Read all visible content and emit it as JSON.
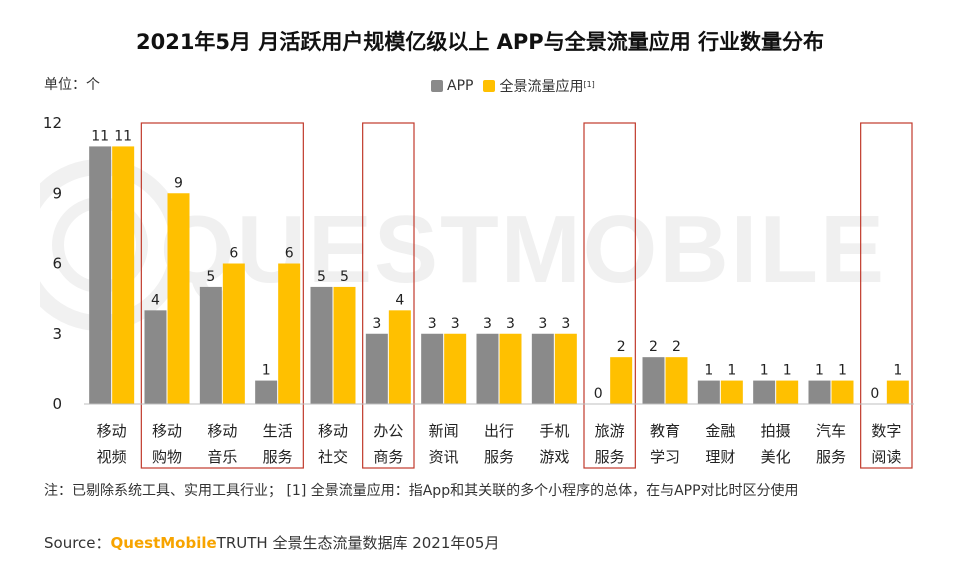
{
  "title": "2021年5月 月活跃用户规模亿级以上 APP与全景流量应用 行业数量分布",
  "unit_label": "单位：个",
  "legend": {
    "app": "APP",
    "panoramic": "全景流量应用",
    "panoramic_sup": "[1]"
  },
  "watermark_text": "QUESTMOBILE",
  "note": "注：已剔除系统工具、实用工具行业；  [1] 全景流量应用：指App和其关联的多个小程序的总体，在与APP对比时区分使用",
  "source": {
    "prefix": "Source：",
    "brand": "QuestMobile",
    "rest": "TRUTH 全景生态流量数据库 2021年05月"
  },
  "colors": {
    "app": "#8a8a8a",
    "panoramic": "#ffc000",
    "highlight_box": "#c0392b"
  },
  "chart_data": {
    "type": "bar",
    "categories": [
      [
        "移动",
        "视频"
      ],
      [
        "移动",
        "购物"
      ],
      [
        "移动",
        "音乐"
      ],
      [
        "生活",
        "服务"
      ],
      [
        "移动",
        "社交"
      ],
      [
        "办公",
        "商务"
      ],
      [
        "新闻",
        "资讯"
      ],
      [
        "出行",
        "服务"
      ],
      [
        "手机",
        "游戏"
      ],
      [
        "旅游",
        "服务"
      ],
      [
        "教育",
        "学习"
      ],
      [
        "金融",
        "理财"
      ],
      [
        "拍摄",
        "美化"
      ],
      [
        "汽车",
        "服务"
      ],
      [
        "数字",
        "阅读"
      ]
    ],
    "series": [
      {
        "name": "APP",
        "values": [
          11,
          4,
          5,
          1,
          5,
          3,
          3,
          3,
          3,
          0,
          2,
          1,
          1,
          1,
          0
        ]
      },
      {
        "name": "全景流量应用",
        "values": [
          11,
          9,
          6,
          6,
          5,
          4,
          3,
          3,
          3,
          2,
          2,
          1,
          1,
          1,
          1
        ]
      }
    ],
    "yticks": [
      "0",
      "3",
      "6",
      "9",
      "12"
    ],
    "ylim": [
      0,
      12
    ],
    "grid": false,
    "legend_position": "top-center",
    "highlight_groups": [
      [
        1,
        3
      ],
      [
        5,
        5
      ],
      [
        9,
        9
      ],
      [
        14,
        14
      ]
    ]
  }
}
